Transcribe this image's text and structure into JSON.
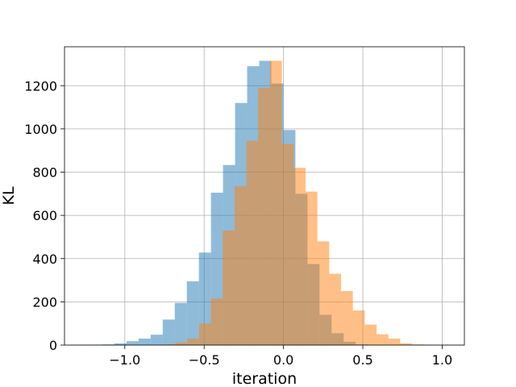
{
  "chart_data": {
    "type": "bar",
    "title": "",
    "xlabel": "iteration",
    "ylabel": "KL",
    "xlim": [
      -1.38,
      1.14
    ],
    "ylim": [
      0,
      1380
    ],
    "grid": true,
    "x_ticks": [
      -1.0,
      -0.5,
      0.0,
      0.5,
      1.0
    ],
    "x_tick_labels": [
      "−1.0",
      "−0.5",
      "0.0",
      "0.5",
      "1.0"
    ],
    "y_ticks": [
      0,
      200,
      400,
      600,
      800,
      1000,
      1200
    ],
    "y_tick_labels": [
      "0",
      "200",
      "400",
      "600",
      "800",
      "1000",
      "1200"
    ],
    "series": [
      {
        "color": "#1f77b4",
        "opacity": 0.5,
        "bin_width": 0.076,
        "bin_starts": [
          -1.293,
          -1.217,
          -1.141,
          -1.065,
          -0.989,
          -0.913,
          -0.837,
          -0.761,
          -0.685,
          -0.609,
          -0.533,
          -0.457,
          -0.381,
          -0.305,
          -0.229,
          -0.153,
          -0.077,
          -0.001,
          0.075,
          0.151,
          0.227,
          0.303,
          0.379,
          0.455,
          0.531,
          0.607,
          0.683,
          0.759,
          0.835,
          0.911
        ],
        "values": [
          1,
          2,
          3,
          8,
          18,
          30,
          48,
          118,
          195,
          295,
          428,
          705,
          833,
          1120,
          1290,
          1315,
          1210,
          995,
          700,
          375,
          140,
          55,
          15,
          3,
          1,
          0,
          0,
          0,
          0,
          0
        ]
      },
      {
        "color": "#ff7f0e",
        "opacity": 0.5,
        "bin_width": 0.0746,
        "bin_starts": [
          -1.204,
          -1.1294,
          -1.0548,
          -0.9802,
          -0.9056,
          -0.831,
          -0.7564,
          -0.6818,
          -0.6072,
          -0.5326,
          -0.458,
          -0.3834,
          -0.3088,
          -0.2342,
          -0.1596,
          -0.085,
          -0.0104,
          0.0642,
          0.1388,
          0.2134,
          0.288,
          0.3626,
          0.4372,
          0.5118,
          0.5864,
          0.661,
          0.7356,
          0.8102,
          0.8848,
          0.9594
        ],
        "values": [
          0,
          0,
          0,
          0,
          0,
          1,
          3,
          12,
          30,
          100,
          215,
          530,
          735,
          945,
          1190,
          1315,
          930,
          820,
          710,
          480,
          330,
          250,
          160,
          95,
          50,
          30,
          8,
          3,
          1,
          0
        ]
      }
    ]
  }
}
